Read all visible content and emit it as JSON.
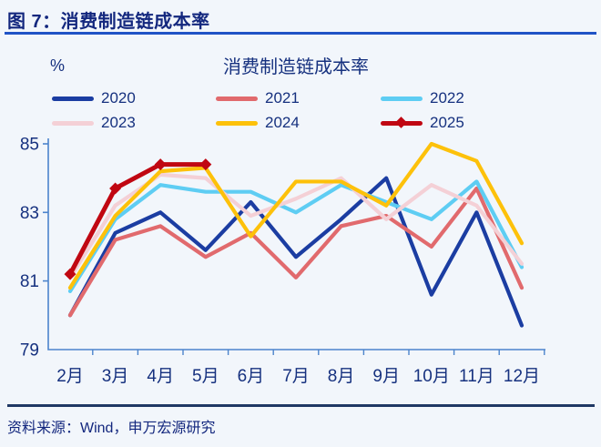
{
  "header": {
    "title": "图 7：消费制造链成本率"
  },
  "footer": {
    "source": "资料来源：Wind，申万宏源研究"
  },
  "chart_data": {
    "type": "line",
    "title": "消费制造链成本率",
    "unit_label": "%",
    "xlabel": "",
    "ylabel": "%",
    "categories": [
      "2月",
      "3月",
      "4月",
      "5月",
      "6月",
      "7月",
      "8月",
      "9月",
      "10月",
      "11月",
      "12月"
    ],
    "ylim": [
      79,
      85
    ],
    "yticks": [
      79,
      81,
      83,
      85
    ],
    "grid": false,
    "legend_position": "top",
    "series": [
      {
        "name": "2020",
        "color": "#1b3da2",
        "marker": "none",
        "values": [
          80.0,
          82.4,
          83.0,
          81.9,
          83.3,
          81.7,
          82.8,
          84.0,
          80.6,
          83.0,
          79.7
        ]
      },
      {
        "name": "2021",
        "color": "#e16a6d",
        "marker": "none",
        "values": [
          80.0,
          82.2,
          82.6,
          81.7,
          82.4,
          81.1,
          82.6,
          82.9,
          82.0,
          83.7,
          80.8
        ]
      },
      {
        "name": "2022",
        "color": "#5ecdf3",
        "marker": "none",
        "values": [
          80.7,
          82.8,
          83.8,
          83.6,
          83.6,
          83.0,
          83.8,
          83.3,
          82.8,
          83.9,
          81.4
        ]
      },
      {
        "name": "2023",
        "color": "#f4d0d6",
        "marker": "none",
        "values": [
          81.1,
          83.2,
          84.1,
          84.0,
          82.9,
          83.4,
          84.0,
          82.8,
          83.8,
          83.2,
          81.5
        ]
      },
      {
        "name": "2024",
        "color": "#fdc10a",
        "marker": "none",
        "values": [
          80.8,
          82.9,
          84.2,
          84.3,
          82.3,
          83.9,
          83.9,
          83.2,
          85.0,
          84.5,
          82.1
        ]
      },
      {
        "name": "2025",
        "color": "#c00712",
        "marker": "diamond",
        "values": [
          81.2,
          83.7,
          84.4,
          84.4,
          null,
          null,
          null,
          null,
          null,
          null,
          null
        ]
      }
    ],
    "axis_color": "#4c84cc",
    "label_color": "#16317f"
  }
}
